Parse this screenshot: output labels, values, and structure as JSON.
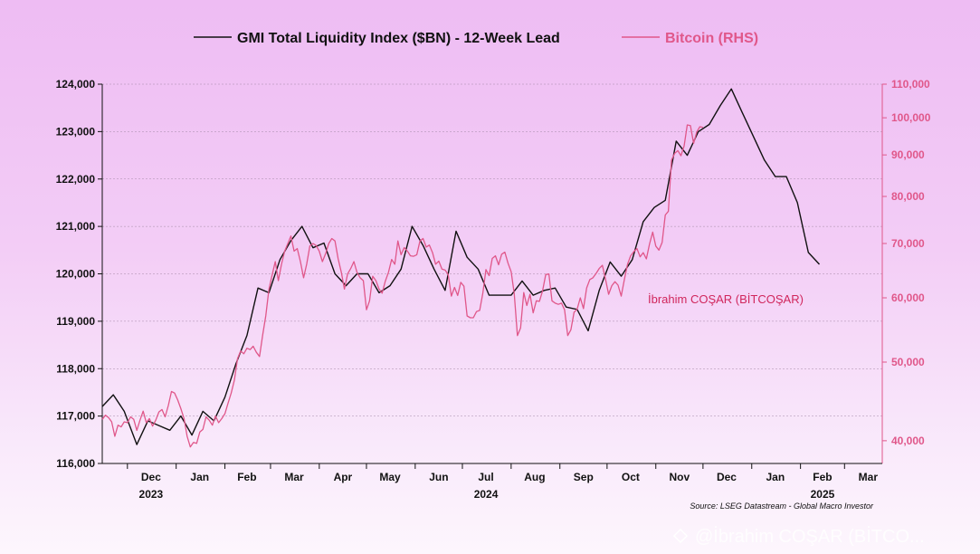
{
  "chart_data": {
    "type": "line",
    "legend": [
      {
        "label": "GMI Total Liquidity Index ($BN) - 12-Week Lead",
        "color": "#111111"
      },
      {
        "label": "Bitcoin (RHS)",
        "color": "#e0578a"
      }
    ],
    "x_axis": {
      "months": [
        "Dec",
        "Jan",
        "Feb",
        "Mar",
        "Apr",
        "May",
        "Jun",
        "Jul",
        "Aug",
        "Sep",
        "Oct",
        "Nov",
        "Dec",
        "Jan",
        "Feb",
        "Mar"
      ],
      "years": [
        "2023",
        "2024",
        "2025"
      ],
      "range": [
        "2023-11-15",
        "2025-03-25"
      ]
    },
    "y_left": {
      "range": [
        116000,
        124000
      ],
      "ticks": [
        116000,
        117000,
        118000,
        119000,
        120000,
        121000,
        122000,
        123000,
        124000
      ],
      "tick_labels": [
        "116,000",
        "117,000",
        "118,000",
        "119,000",
        "120,000",
        "121,000",
        "122,000",
        "123,000",
        "124,000"
      ]
    },
    "y_right": {
      "scale": "log",
      "range": [
        37500,
        110000
      ],
      "ticks": [
        40000,
        50000,
        60000,
        70000,
        80000,
        90000,
        100000,
        110000
      ],
      "tick_labels": [
        "40,000",
        "50,000",
        "60,000",
        "70,000",
        "80,000",
        "90,000",
        "100,000",
        "110,000"
      ]
    },
    "grid": true,
    "series": [
      {
        "name": "GMI Total Liquidity Index ($BN) - 12-Week Lead",
        "axis": "left",
        "color": "#111111",
        "points": [
          [
            "2023-11-15",
            117200
          ],
          [
            "2023-11-22",
            117450
          ],
          [
            "2023-11-29",
            117100
          ],
          [
            "2023-12-07",
            116400
          ],
          [
            "2023-12-14",
            116900
          ],
          [
            "2023-12-21",
            116800
          ],
          [
            "2023-12-28",
            116700
          ],
          [
            "2024-01-04",
            117000
          ],
          [
            "2024-01-11",
            116600
          ],
          [
            "2024-01-18",
            117100
          ],
          [
            "2024-01-25",
            116900
          ],
          [
            "2024-02-01",
            117400
          ],
          [
            "2024-02-08",
            118100
          ],
          [
            "2024-02-15",
            118700
          ],
          [
            "2024-02-22",
            119700
          ],
          [
            "2024-02-29",
            119600
          ],
          [
            "2024-03-07",
            120300
          ],
          [
            "2024-03-14",
            120700
          ],
          [
            "2024-03-21",
            121000
          ],
          [
            "2024-03-28",
            120550
          ],
          [
            "2024-04-04",
            120650
          ],
          [
            "2024-04-11",
            120000
          ],
          [
            "2024-04-18",
            119750
          ],
          [
            "2024-04-25",
            120000
          ],
          [
            "2024-05-02",
            120000
          ],
          [
            "2024-05-09",
            119600
          ],
          [
            "2024-05-16",
            119750
          ],
          [
            "2024-05-23",
            120100
          ],
          [
            "2024-05-30",
            121000
          ],
          [
            "2024-06-06",
            120600
          ],
          [
            "2024-06-13",
            120100
          ],
          [
            "2024-06-20",
            119650
          ],
          [
            "2024-06-27",
            120900
          ],
          [
            "2024-07-04",
            120350
          ],
          [
            "2024-07-11",
            120100
          ],
          [
            "2024-07-18",
            119550
          ],
          [
            "2024-07-25",
            119550
          ],
          [
            "2024-08-01",
            119550
          ],
          [
            "2024-08-08",
            119850
          ],
          [
            "2024-08-15",
            119550
          ],
          [
            "2024-08-22",
            119650
          ],
          [
            "2024-08-29",
            119700
          ],
          [
            "2024-09-05",
            119300
          ],
          [
            "2024-09-12",
            119250
          ],
          [
            "2024-09-19",
            118800
          ],
          [
            "2024-09-26",
            119650
          ],
          [
            "2024-10-03",
            120250
          ],
          [
            "2024-10-10",
            119950
          ],
          [
            "2024-10-17",
            120300
          ],
          [
            "2024-10-24",
            121100
          ],
          [
            "2024-10-31",
            121400
          ],
          [
            "2024-11-07",
            121550
          ],
          [
            "2024-11-14",
            122800
          ],
          [
            "2024-11-21",
            122500
          ],
          [
            "2024-11-28",
            123000
          ],
          [
            "2024-12-05",
            123150
          ],
          [
            "2024-12-12",
            123550
          ],
          [
            "2024-12-19",
            123900
          ],
          [
            "2024-12-26",
            123400
          ],
          [
            "2025-01-02",
            122900
          ],
          [
            "2025-01-09",
            122400
          ],
          [
            "2025-01-16",
            122050
          ],
          [
            "2025-01-23",
            122050
          ],
          [
            "2025-01-30",
            121500
          ],
          [
            "2025-02-06",
            120450
          ],
          [
            "2025-02-13",
            120200
          ]
        ]
      },
      {
        "name": "Bitcoin (RHS)",
        "axis": "right",
        "color": "#e0578a",
        "points": [
          [
            "2023-11-15",
            42500
          ],
          [
            "2023-11-17",
            43000
          ],
          [
            "2023-11-19",
            42700
          ],
          [
            "2023-11-21",
            42200
          ],
          [
            "2023-11-23",
            40500
          ],
          [
            "2023-11-25",
            41800
          ],
          [
            "2023-11-27",
            41600
          ],
          [
            "2023-11-29",
            42200
          ],
          [
            "2023-12-01",
            42100
          ],
          [
            "2023-12-03",
            42800
          ],
          [
            "2023-12-05",
            42500
          ],
          [
            "2023-12-07",
            41200
          ],
          [
            "2023-12-09",
            42400
          ],
          [
            "2023-12-11",
            43500
          ],
          [
            "2023-12-13",
            42100
          ],
          [
            "2023-12-15",
            42600
          ],
          [
            "2023-12-17",
            41700
          ],
          [
            "2023-12-19",
            42400
          ],
          [
            "2023-12-21",
            43400
          ],
          [
            "2023-12-23",
            43700
          ],
          [
            "2023-12-25",
            42800
          ],
          [
            "2023-12-27",
            44200
          ],
          [
            "2023-12-29",
            46000
          ],
          [
            "2023-12-31",
            45800
          ],
          [
            "2024-01-02",
            44900
          ],
          [
            "2024-01-04",
            43800
          ],
          [
            "2024-01-06",
            42600
          ],
          [
            "2024-01-08",
            40500
          ],
          [
            "2024-01-10",
            39300
          ],
          [
            "2024-01-12",
            39800
          ],
          [
            "2024-01-14",
            39700
          ],
          [
            "2024-01-16",
            41000
          ],
          [
            "2024-01-18",
            41300
          ],
          [
            "2024-01-20",
            42800
          ],
          [
            "2024-01-22",
            42400
          ],
          [
            "2024-01-24",
            41800
          ],
          [
            "2024-01-26",
            42900
          ],
          [
            "2024-01-28",
            42100
          ],
          [
            "2024-01-30",
            42600
          ],
          [
            "2024-02-01",
            43200
          ],
          [
            "2024-02-03",
            44500
          ],
          [
            "2024-02-05",
            45800
          ],
          [
            "2024-02-07",
            47500
          ],
          [
            "2024-02-09",
            50500
          ],
          [
            "2024-02-11",
            51600
          ],
          [
            "2024-02-13",
            51200
          ],
          [
            "2024-02-15",
            52000
          ],
          [
            "2024-02-17",
            51800
          ],
          [
            "2024-02-19",
            52300
          ],
          [
            "2024-02-21",
            51400
          ],
          [
            "2024-02-23",
            50800
          ],
          [
            "2024-02-25",
            54000
          ],
          [
            "2024-02-27",
            57000
          ],
          [
            "2024-02-29",
            61500
          ],
          [
            "2024-03-02",
            64000
          ],
          [
            "2024-03-04",
            66500
          ],
          [
            "2024-03-06",
            63000
          ],
          [
            "2024-03-08",
            66000
          ],
          [
            "2024-03-10",
            68500
          ],
          [
            "2024-03-12",
            70000
          ],
          [
            "2024-03-14",
            71500
          ],
          [
            "2024-03-16",
            68500
          ],
          [
            "2024-03-18",
            69000
          ],
          [
            "2024-03-20",
            66500
          ],
          [
            "2024-03-22",
            63500
          ],
          [
            "2024-03-24",
            66000
          ],
          [
            "2024-03-26",
            69500
          ],
          [
            "2024-03-28",
            70000
          ],
          [
            "2024-03-30",
            69600
          ],
          [
            "2024-04-01",
            68500
          ],
          [
            "2024-04-03",
            66500
          ],
          [
            "2024-04-05",
            68000
          ],
          [
            "2024-04-07",
            70000
          ],
          [
            "2024-04-09",
            71000
          ],
          [
            "2024-04-11",
            70500
          ],
          [
            "2024-04-13",
            67000
          ],
          [
            "2024-04-15",
            64500
          ],
          [
            "2024-04-17",
            61500
          ],
          [
            "2024-04-19",
            64200
          ],
          [
            "2024-04-21",
            65200
          ],
          [
            "2024-04-23",
            66500
          ],
          [
            "2024-04-25",
            64500
          ],
          [
            "2024-04-27",
            63500
          ],
          [
            "2024-04-29",
            63000
          ],
          [
            "2024-05-01",
            58000
          ],
          [
            "2024-05-03",
            59500
          ],
          [
            "2024-05-05",
            63800
          ],
          [
            "2024-05-07",
            63000
          ],
          [
            "2024-05-09",
            61500
          ],
          [
            "2024-05-11",
            60800
          ],
          [
            "2024-05-13",
            62900
          ],
          [
            "2024-05-15",
            64500
          ],
          [
            "2024-05-17",
            66900
          ],
          [
            "2024-05-19",
            66000
          ],
          [
            "2024-05-21",
            70500
          ],
          [
            "2024-05-23",
            67800
          ],
          [
            "2024-05-25",
            69200
          ],
          [
            "2024-05-27",
            68500
          ],
          [
            "2024-05-29",
            67600
          ],
          [
            "2024-05-31",
            67500
          ],
          [
            "2024-06-02",
            67800
          ],
          [
            "2024-06-04",
            70500
          ],
          [
            "2024-06-06",
            71000
          ],
          [
            "2024-06-08",
            69300
          ],
          [
            "2024-06-10",
            69700
          ],
          [
            "2024-06-12",
            68200
          ],
          [
            "2024-06-14",
            66000
          ],
          [
            "2024-06-16",
            66600
          ],
          [
            "2024-06-18",
            65100
          ],
          [
            "2024-06-20",
            64900
          ],
          [
            "2024-06-22",
            64100
          ],
          [
            "2024-06-24",
            60300
          ],
          [
            "2024-06-26",
            61800
          ],
          [
            "2024-06-28",
            60400
          ],
          [
            "2024-06-30",
            62700
          ],
          [
            "2024-07-02",
            62000
          ],
          [
            "2024-07-04",
            57000
          ],
          [
            "2024-07-06",
            56700
          ],
          [
            "2024-07-08",
            56700
          ],
          [
            "2024-07-10",
            57700
          ],
          [
            "2024-07-12",
            57900
          ],
          [
            "2024-07-14",
            60800
          ],
          [
            "2024-07-16",
            65000
          ],
          [
            "2024-07-18",
            63900
          ],
          [
            "2024-07-20",
            67100
          ],
          [
            "2024-07-22",
            67600
          ],
          [
            "2024-07-24",
            65900
          ],
          [
            "2024-07-26",
            67900
          ],
          [
            "2024-07-28",
            68300
          ],
          [
            "2024-07-30",
            66200
          ],
          [
            "2024-08-01",
            64600
          ],
          [
            "2024-08-03",
            60700
          ],
          [
            "2024-08-05",
            53900
          ],
          [
            "2024-08-07",
            55100
          ],
          [
            "2024-08-09",
            60900
          ],
          [
            "2024-08-11",
            58700
          ],
          [
            "2024-08-13",
            60600
          ],
          [
            "2024-08-15",
            57500
          ],
          [
            "2024-08-17",
            59500
          ],
          [
            "2024-08-19",
            59400
          ],
          [
            "2024-08-21",
            61200
          ],
          [
            "2024-08-23",
            64100
          ],
          [
            "2024-08-25",
            64200
          ],
          [
            "2024-08-27",
            59500
          ],
          [
            "2024-08-29",
            59100
          ],
          [
            "2024-08-31",
            58900
          ],
          [
            "2024-09-02",
            59100
          ],
          [
            "2024-09-04",
            58000
          ],
          [
            "2024-09-06",
            53900
          ],
          [
            "2024-09-08",
            54800
          ],
          [
            "2024-09-10",
            57600
          ],
          [
            "2024-09-12",
            58100
          ],
          [
            "2024-09-14",
            60000
          ],
          [
            "2024-09-16",
            58200
          ],
          [
            "2024-09-18",
            61700
          ],
          [
            "2024-09-20",
            63200
          ],
          [
            "2024-09-22",
            63500
          ],
          [
            "2024-09-24",
            64300
          ],
          [
            "2024-09-26",
            65200
          ],
          [
            "2024-09-28",
            65800
          ],
          [
            "2024-09-30",
            63300
          ],
          [
            "2024-10-02",
            60600
          ],
          [
            "2024-10-04",
            62100
          ],
          [
            "2024-10-06",
            62800
          ],
          [
            "2024-10-08",
            62200
          ],
          [
            "2024-10-10",
            60300
          ],
          [
            "2024-10-12",
            63200
          ],
          [
            "2024-10-14",
            66000
          ],
          [
            "2024-10-16",
            67600
          ],
          [
            "2024-10-18",
            68400
          ],
          [
            "2024-10-20",
            69000
          ],
          [
            "2024-10-22",
            67400
          ],
          [
            "2024-10-24",
            68200
          ],
          [
            "2024-10-26",
            67000
          ],
          [
            "2024-10-28",
            69900
          ],
          [
            "2024-10-30",
            72300
          ],
          [
            "2024-11-01",
            69500
          ],
          [
            "2024-11-03",
            68700
          ],
          [
            "2024-11-05",
            70200
          ],
          [
            "2024-11-07",
            75900
          ],
          [
            "2024-11-09",
            76700
          ],
          [
            "2024-11-11",
            88700
          ],
          [
            "2024-11-13",
            90400
          ],
          [
            "2024-11-15",
            91100
          ],
          [
            "2024-11-17",
            89800
          ],
          [
            "2024-11-19",
            92300
          ],
          [
            "2024-11-21",
            98000
          ],
          [
            "2024-11-23",
            97800
          ],
          [
            "2024-11-25",
            93000
          ],
          [
            "2024-11-27",
            96000
          ],
          [
            "2024-11-29",
            97500
          ],
          [
            "2024-12-01",
            97300
          ]
        ]
      }
    ],
    "annotation": "İbrahim COŞAR (BİTCOŞAR)",
    "source": "Source: LSEG Datastream - Global Macro Investor",
    "watermark": "@İbrahim COŞAR (BİTCO..."
  }
}
